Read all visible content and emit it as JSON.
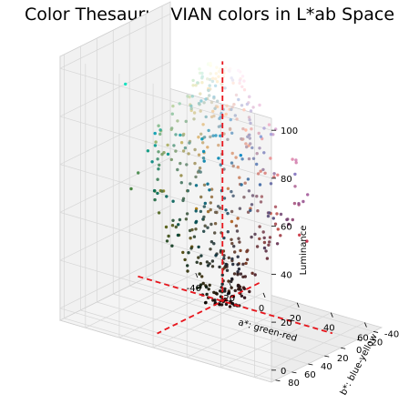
{
  "chart_data": {
    "type": "scatter",
    "projection": "3d",
    "title": "Color Thesaurus VIAN colors in L*ab Space",
    "xlabel": "a*: green-red",
    "ylabel": "b*: blue-yellow",
    "zlabel": "Luminance",
    "xlim": [
      -55,
      70
    ],
    "ylim": [
      -50,
      85
    ],
    "zlim": [
      -5,
      105
    ],
    "xticks": [
      -40,
      -20,
      0,
      20,
      40,
      60
    ],
    "yticks": [
      -40,
      -20,
      0,
      20,
      40,
      60,
      80
    ],
    "zticks": [
      0,
      20,
      40,
      60,
      80,
      100
    ],
    "grid": true,
    "reference_axes": {
      "color": "#e8141b",
      "style": "dashed",
      "lines": [
        {
          "axis": "a*",
          "from": [
            -50,
            0,
            0
          ],
          "to": [
            65,
            0,
            0
          ]
        },
        {
          "axis": "b*",
          "from": [
            0,
            -45,
            0
          ],
          "to": [
            0,
            80,
            0
          ]
        },
        {
          "axis": "L*",
          "from": [
            0,
            0,
            0
          ],
          "to": [
            0,
            0,
            100
          ]
        }
      ]
    },
    "point_count": 520,
    "point_distribution": {
      "luminance_range": [
        0,
        100
      ],
      "a_range": [
        -45,
        65
      ],
      "b_range": [
        -45,
        80
      ],
      "point_color": "sRGB color of each L*a*b* value"
    },
    "notable_points": [
      {
        "a": -55,
        "b": 5,
        "L": 80
      },
      {
        "a": -52,
        "b": -25,
        "L": 55
      },
      {
        "a": 60,
        "b": 30,
        "L": 45
      },
      {
        "a": 62,
        "b": 25,
        "L": 42
      }
    ]
  }
}
